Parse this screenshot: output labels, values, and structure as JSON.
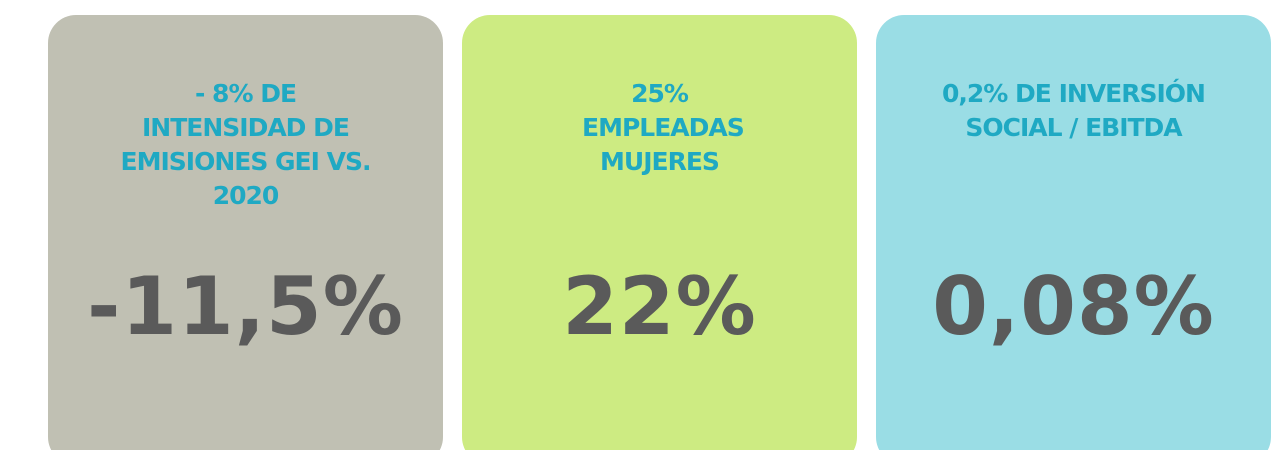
{
  "cards": [
    {
      "label": "- 8% DE INTENSIDAD DE EMISIONES GEI VS. 2020",
      "value": "-11,5%"
    },
    {
      "label": "25% EMPLEADAS MUJERES",
      "value": "22%"
    },
    {
      "label": "0,2% DE INVERSIÓN SOCIAL / EBITDA",
      "value": "0,08%"
    }
  ]
}
